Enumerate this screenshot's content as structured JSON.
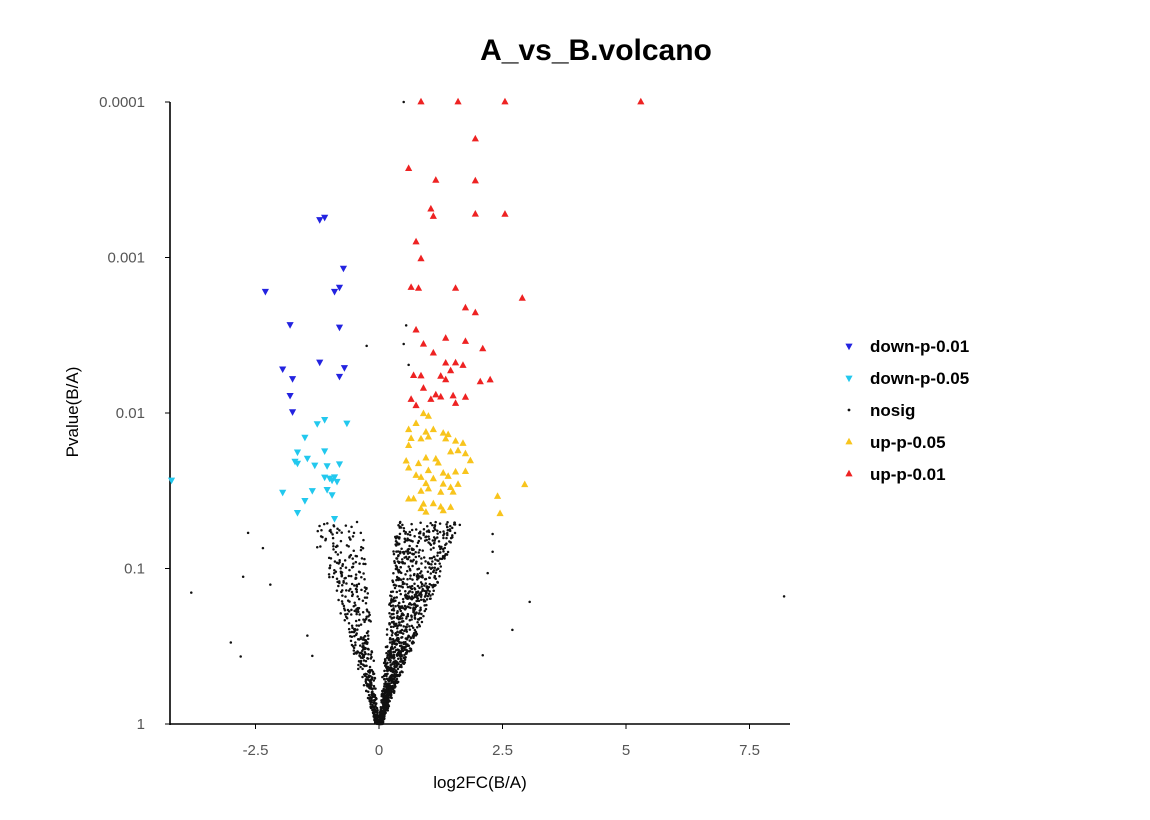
{
  "chart_data": {
    "type": "scatter",
    "title": "A_vs_B.volcano",
    "xlabel": "log2FC(B/A)",
    "ylabel": "Pvalue(B/A)",
    "xlim": [
      -4.2,
      8.4
    ],
    "ylim_log10_pvalue": [
      0,
      -4
    ],
    "y_scale": "reversed-log",
    "grid": false,
    "legend_position": "right",
    "x_ticks": [
      {
        "value": -2.5,
        "label": "-2.5"
      },
      {
        "value": 0,
        "label": "0"
      },
      {
        "value": 2.5,
        "label": "2.5"
      },
      {
        "value": 5,
        "label": "5"
      },
      {
        "value": 7.5,
        "label": "7.5"
      }
    ],
    "y_ticks": [
      {
        "value": 0.0001,
        "label": "0.0001"
      },
      {
        "value": 0.001,
        "label": "0.001"
      },
      {
        "value": 0.01,
        "label": "0.01"
      },
      {
        "value": 0.1,
        "label": "0.1"
      },
      {
        "value": 1,
        "label": "1"
      }
    ],
    "series": [
      {
        "name": "down-p-0.01",
        "color": "#2323e0",
        "marker": "triangle-down",
        "points": [
          [
            -2.3,
            0.00165
          ],
          [
            -1.8,
            0.0027
          ],
          [
            -1.2,
            0.00057
          ],
          [
            -1.1,
            0.00055
          ],
          [
            -0.9,
            0.00165
          ],
          [
            -0.8,
            0.00155
          ],
          [
            -0.72,
            0.00117
          ],
          [
            -0.8,
            0.0028
          ],
          [
            -1.95,
            0.0052
          ],
          [
            -1.75,
            0.006
          ],
          [
            -1.8,
            0.0077
          ],
          [
            -1.75,
            0.0098
          ],
          [
            -1.2,
            0.0047
          ],
          [
            -0.8,
            0.0058
          ],
          [
            -0.7,
            0.0051
          ]
        ]
      },
      {
        "name": "down-p-0.05",
        "color": "#22c8ee",
        "marker": "triangle-down",
        "points": [
          [
            -4.2,
            0.027
          ],
          [
            -1.25,
            0.0117
          ],
          [
            -1.1,
            0.011
          ],
          [
            -0.65,
            0.0116
          ],
          [
            -1.5,
            0.0143
          ],
          [
            -1.65,
            0.0178
          ],
          [
            -1.7,
            0.0204
          ],
          [
            -1.65,
            0.021
          ],
          [
            -1.45,
            0.0195
          ],
          [
            -1.1,
            0.0175
          ],
          [
            -1.05,
            0.0218
          ],
          [
            -1.3,
            0.0216
          ],
          [
            -0.8,
            0.0212
          ],
          [
            -1.0,
            0.0262
          ],
          [
            -0.9,
            0.0257
          ],
          [
            -0.85,
            0.0275
          ],
          [
            -0.95,
            0.027
          ],
          [
            -1.1,
            0.0258
          ],
          [
            -1.35,
            0.0315
          ],
          [
            -1.5,
            0.0365
          ],
          [
            -1.05,
            0.031
          ],
          [
            -0.95,
            0.0335
          ],
          [
            -1.95,
            0.0323
          ],
          [
            -1.65,
            0.0436
          ],
          [
            -0.9,
            0.0476
          ]
        ]
      },
      {
        "name": "up-p-0.05",
        "color": "#f8c41c",
        "marker": "triangle-up",
        "points": [
          [
            0.9,
            0.0101
          ],
          [
            1.0,
            0.0105
          ],
          [
            0.75,
            0.0117
          ],
          [
            0.6,
            0.0128
          ],
          [
            0.95,
            0.0133
          ],
          [
            1.1,
            0.0128
          ],
          [
            1.4,
            0.0138
          ],
          [
            1.3,
            0.0135
          ],
          [
            0.65,
            0.0146
          ],
          [
            0.85,
            0.0147
          ],
          [
            1.0,
            0.0143
          ],
          [
            1.35,
            0.0147
          ],
          [
            1.55,
            0.0152
          ],
          [
            1.7,
            0.0157
          ],
          [
            0.6,
            0.0162
          ],
          [
            1.45,
            0.0178
          ],
          [
            1.6,
            0.0175
          ],
          [
            1.75,
            0.0183
          ],
          [
            0.95,
            0.0195
          ],
          [
            1.15,
            0.0198
          ],
          [
            0.55,
            0.0204
          ],
          [
            0.8,
            0.0212
          ],
          [
            1.2,
            0.021
          ],
          [
            1.85,
            0.0203
          ],
          [
            0.6,
            0.0226
          ],
          [
            1.0,
            0.0235
          ],
          [
            1.3,
            0.0244
          ],
          [
            1.55,
            0.024
          ],
          [
            1.75,
            0.0238
          ],
          [
            0.75,
            0.0252
          ],
          [
            0.85,
            0.026
          ],
          [
            1.1,
            0.0265
          ],
          [
            1.4,
            0.0256
          ],
          [
            0.95,
            0.0285
          ],
          [
            1.3,
            0.0287
          ],
          [
            1.6,
            0.0288
          ],
          [
            2.95,
            0.0289
          ],
          [
            1.0,
            0.0308
          ],
          [
            1.45,
            0.0302
          ],
          [
            0.85,
            0.0319
          ],
          [
            1.25,
            0.0324
          ],
          [
            1.5,
            0.0323
          ],
          [
            2.4,
            0.0344
          ],
          [
            0.6,
            0.0358
          ],
          [
            0.7,
            0.0357
          ],
          [
            0.9,
            0.0386
          ],
          [
            1.1,
            0.0384
          ],
          [
            0.85,
            0.0413
          ],
          [
            1.25,
            0.0403
          ],
          [
            1.45,
            0.0405
          ],
          [
            0.95,
            0.0435
          ],
          [
            1.3,
            0.0426
          ],
          [
            2.45,
            0.0444
          ]
        ]
      },
      {
        "name": "up-p-0.01",
        "color": "#ee2222",
        "marker": "triangle-up",
        "points": [
          [
            0.85,
            0.0001
          ],
          [
            1.6,
            0.0001
          ],
          [
            2.55,
            0.0001
          ],
          [
            5.3,
            0.0001
          ],
          [
            1.95,
            0.000173
          ],
          [
            0.6,
            0.000268
          ],
          [
            1.15,
            0.000319
          ],
          [
            1.95,
            0.000322
          ],
          [
            1.05,
            0.000488
          ],
          [
            1.1,
            0.000545
          ],
          [
            2.55,
            0.000528
          ],
          [
            1.95,
            0.000527
          ],
          [
            0.75,
            0.000794
          ],
          [
            0.85,
            0.00102
          ],
          [
            0.65,
            0.00156
          ],
          [
            0.8,
            0.00158
          ],
          [
            1.55,
            0.00158
          ],
          [
            2.9,
            0.00183
          ],
          [
            1.75,
            0.00211
          ],
          [
            1.95,
            0.00227
          ],
          [
            0.75,
            0.00293
          ],
          [
            0.9,
            0.00361
          ],
          [
            1.35,
            0.00331
          ],
          [
            1.75,
            0.00347
          ],
          [
            1.1,
            0.00412
          ],
          [
            2.1,
            0.00387
          ],
          [
            1.35,
            0.00478
          ],
          [
            1.55,
            0.00477
          ],
          [
            1.7,
            0.00495
          ],
          [
            0.7,
            0.00575
          ],
          [
            0.85,
            0.00578
          ],
          [
            1.25,
            0.00581
          ],
          [
            1.45,
            0.00536
          ],
          [
            1.35,
            0.00612
          ],
          [
            2.25,
            0.00613
          ],
          [
            2.05,
            0.00631
          ],
          [
            0.9,
            0.00694
          ],
          [
            1.15,
            0.00766
          ],
          [
            1.5,
            0.00777
          ],
          [
            0.65,
            0.00818
          ],
          [
            1.05,
            0.00819
          ],
          [
            1.25,
            0.0079
          ],
          [
            1.75,
            0.00793
          ],
          [
            1.55,
            0.00868
          ],
          [
            0.75,
            0.00898
          ]
        ]
      },
      {
        "name": "nosig",
        "color": "#111111",
        "marker": "dot",
        "summary": "approximately 2000 non-significant genes forming a V-shaped cloud centred at log2FC 0 with p-values from about 0.05 to 1",
        "points": [
          [
            0.5,
            0.0001
          ],
          [
            0.55,
            0.00273
          ],
          [
            0.5,
            0.0036
          ],
          [
            0.6,
            0.0049
          ],
          [
            -0.25,
            0.0037
          ],
          [
            -3.8,
            0.143
          ],
          [
            8.2,
            0.151
          ],
          [
            3.05,
            0.164
          ],
          [
            2.7,
            0.248
          ],
          [
            -3.0,
            0.299
          ],
          [
            -2.8,
            0.368
          ],
          [
            -2.65,
            0.059
          ],
          [
            -2.35,
            0.074
          ],
          [
            -1.25,
            0.073
          ],
          [
            -2.75,
            0.113
          ],
          [
            -2.2,
            0.127
          ],
          [
            2.3,
            0.06
          ],
          [
            2.3,
            0.078
          ],
          [
            2.2,
            0.107
          ],
          [
            -1.35,
            0.365
          ],
          [
            2.1,
            0.361
          ],
          [
            -1.45,
            0.27
          ]
        ]
      }
    ]
  }
}
